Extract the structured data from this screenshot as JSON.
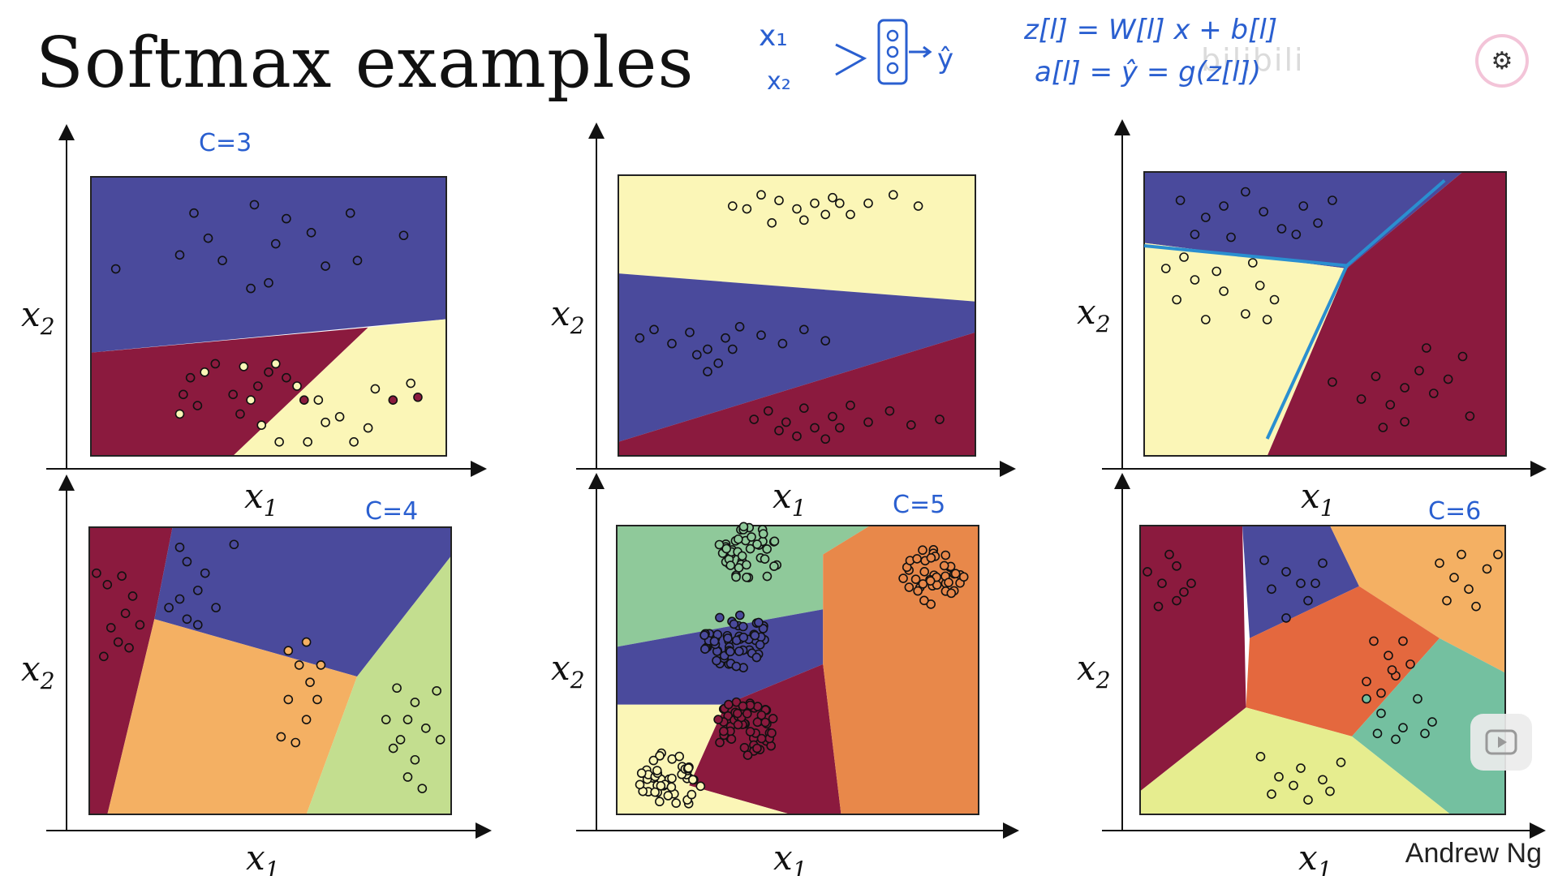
{
  "title": "Softmax examples",
  "author": "Andrew Ng",
  "watermark": "bilibili",
  "annotations": {
    "network_x1": "x₁",
    "network_x2": "x₂",
    "network_yhat": "ŷ",
    "eq1": "z[l] = W[l] x + b[l]",
    "eq2": "a[l] = ŷ = g(z[l])"
  },
  "colors": {
    "purple": "#4a4a9c",
    "maroon": "#8b1a3e",
    "lightyellow": "#fbf6b7",
    "orange": "#f4b063",
    "lightgreen": "#c3de8f",
    "green": "#8fc99a",
    "deeporange": "#e8884a",
    "red_orange": "#e4683e",
    "teal": "#74c0a0",
    "yellow_green": "#e6ed8f",
    "ink": "#2a5fd0"
  },
  "chart_data": [
    {
      "type": "scatter",
      "classes": 3,
      "class_annotation": "C=3",
      "xlabel": "x1",
      "ylabel": "x2",
      "region_colors": [
        "purple",
        "maroon",
        "lightyellow"
      ],
      "series": [
        {
          "class": "purple",
          "points": [
            [
              0.07,
              0.67
            ],
            [
              0.29,
              0.87
            ],
            [
              0.46,
              0.9
            ],
            [
              0.52,
              0.76
            ],
            [
              0.62,
              0.8
            ],
            [
              0.73,
              0.87
            ],
            [
              0.88,
              0.79
            ],
            [
              0.45,
              0.6
            ],
            [
              0.37,
              0.7
            ],
            [
              0.66,
              0.68
            ],
            [
              0.55,
              0.85
            ],
            [
              0.33,
              0.78
            ],
            [
              0.5,
              0.62
            ],
            [
              0.25,
              0.72
            ],
            [
              0.75,
              0.7
            ]
          ]
        },
        {
          "class": "maroon",
          "points": [
            [
              0.28,
              0.28
            ],
            [
              0.3,
              0.18
            ],
            [
              0.4,
              0.22
            ],
            [
              0.5,
              0.3
            ],
            [
              0.42,
              0.15
            ],
            [
              0.35,
              0.33
            ],
            [
              0.47,
              0.25
            ],
            [
              0.85,
              0.2
            ],
            [
              0.92,
              0.21
            ],
            [
              0.26,
              0.22
            ],
            [
              0.55,
              0.28
            ],
            [
              0.6,
              0.2
            ]
          ]
        },
        {
          "class": "lightyellow",
          "points": [
            [
              0.25,
              0.15
            ],
            [
              0.32,
              0.3
            ],
            [
              0.43,
              0.32
            ],
            [
              0.52,
              0.33
            ],
            [
              0.58,
              0.25
            ],
            [
              0.64,
              0.2
            ],
            [
              0.7,
              0.14
            ],
            [
              0.74,
              0.05
            ],
            [
              0.61,
              0.05
            ],
            [
              0.66,
              0.12
            ],
            [
              0.8,
              0.24
            ],
            [
              0.9,
              0.26
            ],
            [
              0.48,
              0.11
            ],
            [
              0.53,
              0.05
            ],
            [
              0.78,
              0.1
            ],
            [
              0.45,
              0.2
            ]
          ]
        }
      ]
    },
    {
      "type": "scatter",
      "classes": 3,
      "xlabel": "x1",
      "ylabel": "x2",
      "region_colors": [
        "lightyellow",
        "purple",
        "maroon"
      ],
      "series": [
        {
          "class": "lightyellow",
          "points": [
            [
              0.32,
              0.89
            ],
            [
              0.36,
              0.88
            ],
            [
              0.4,
              0.93
            ],
            [
              0.45,
              0.91
            ],
            [
              0.5,
              0.88
            ],
            [
              0.55,
              0.9
            ],
            [
              0.6,
              0.92
            ],
            [
              0.65,
              0.86
            ],
            [
              0.7,
              0.9
            ],
            [
              0.77,
              0.93
            ],
            [
              0.84,
              0.89
            ],
            [
              0.43,
              0.83
            ],
            [
              0.52,
              0.84
            ],
            [
              0.58,
              0.86
            ],
            [
              0.62,
              0.9
            ]
          ]
        },
        {
          "class": "purple",
          "points": [
            [
              0.06,
              0.42
            ],
            [
              0.1,
              0.45
            ],
            [
              0.15,
              0.4
            ],
            [
              0.2,
              0.44
            ],
            [
              0.25,
              0.38
            ],
            [
              0.3,
              0.42
            ],
            [
              0.34,
              0.46
            ],
            [
              0.4,
              0.43
            ],
            [
              0.46,
              0.4
            ],
            [
              0.52,
              0.45
            ],
            [
              0.58,
              0.41
            ],
            [
              0.25,
              0.3
            ],
            [
              0.28,
              0.33
            ],
            [
              0.22,
              0.36
            ],
            [
              0.32,
              0.38
            ]
          ]
        },
        {
          "class": "maroon",
          "points": [
            [
              0.38,
              0.13
            ],
            [
              0.42,
              0.16
            ],
            [
              0.47,
              0.12
            ],
            [
              0.52,
              0.17
            ],
            [
              0.55,
              0.1
            ],
            [
              0.6,
              0.14
            ],
            [
              0.65,
              0.18
            ],
            [
              0.7,
              0.12
            ],
            [
              0.76,
              0.16
            ],
            [
              0.82,
              0.11
            ],
            [
              0.9,
              0.13
            ],
            [
              0.58,
              0.06
            ],
            [
              0.5,
              0.07
            ],
            [
              0.62,
              0.1
            ],
            [
              0.45,
              0.09
            ]
          ]
        }
      ]
    },
    {
      "type": "scatter",
      "classes": 3,
      "xlabel": "x1",
      "ylabel": "x2",
      "region_colors": [
        "purple",
        "maroon",
        "lightyellow"
      ],
      "series": [
        {
          "class": "purple",
          "points": [
            [
              0.1,
              0.9
            ],
            [
              0.17,
              0.84
            ],
            [
              0.22,
              0.88
            ],
            [
              0.28,
              0.93
            ],
            [
              0.33,
              0.86
            ],
            [
              0.38,
              0.8
            ],
            [
              0.44,
              0.88
            ],
            [
              0.48,
              0.82
            ],
            [
              0.52,
              0.9
            ],
            [
              0.14,
              0.78
            ],
            [
              0.24,
              0.77
            ],
            [
              0.42,
              0.78
            ]
          ]
        },
        {
          "class": "lightyellow",
          "points": [
            [
              0.06,
              0.66
            ],
            [
              0.09,
              0.55
            ],
            [
              0.14,
              0.62
            ],
            [
              0.17,
              0.48
            ],
            [
              0.22,
              0.58
            ],
            [
              0.28,
              0.5
            ],
            [
              0.32,
              0.6
            ],
            [
              0.36,
              0.55
            ],
            [
              0.2,
              0.65
            ],
            [
              0.3,
              0.68
            ],
            [
              0.11,
              0.7
            ],
            [
              0.34,
              0.48
            ]
          ]
        },
        {
          "class": "maroon",
          "points": [
            [
              0.52,
              0.26
            ],
            [
              0.6,
              0.2
            ],
            [
              0.64,
              0.28
            ],
            [
              0.68,
              0.18
            ],
            [
              0.72,
              0.24
            ],
            [
              0.76,
              0.3
            ],
            [
              0.8,
              0.22
            ],
            [
              0.84,
              0.27
            ],
            [
              0.9,
              0.14
            ],
            [
              0.66,
              0.1
            ],
            [
              0.72,
              0.12
            ],
            [
              0.78,
              0.38
            ],
            [
              0.88,
              0.35
            ]
          ]
        }
      ]
    },
    {
      "type": "scatter",
      "classes": 4,
      "class_annotation": "C=4",
      "xlabel": "x1",
      "ylabel": "x2",
      "region_colors": [
        "maroon",
        "purple",
        "orange",
        "lightgreen"
      ],
      "series": [
        {
          "class": "maroon",
          "points": [
            [
              0.02,
              0.84
            ],
            [
              0.05,
              0.8
            ],
            [
              0.09,
              0.83
            ],
            [
              0.12,
              0.76
            ],
            [
              0.06,
              0.65
            ],
            [
              0.1,
              0.7
            ],
            [
              0.14,
              0.66
            ],
            [
              0.08,
              0.6
            ],
            [
              0.04,
              0.55
            ],
            [
              0.11,
              0.58
            ]
          ]
        },
        {
          "class": "purple",
          "points": [
            [
              0.25,
              0.93
            ],
            [
              0.27,
              0.88
            ],
            [
              0.32,
              0.84
            ],
            [
              0.3,
              0.78
            ],
            [
              0.25,
              0.75
            ],
            [
              0.22,
              0.72
            ],
            [
              0.27,
              0.68
            ],
            [
              0.35,
              0.72
            ],
            [
              0.3,
              0.66
            ],
            [
              0.4,
              0.94
            ]
          ]
        },
        {
          "class": "orange",
          "points": [
            [
              0.55,
              0.57
            ],
            [
              0.6,
              0.6
            ],
            [
              0.58,
              0.52
            ],
            [
              0.61,
              0.46
            ],
            [
              0.55,
              0.4
            ],
            [
              0.6,
              0.33
            ],
            [
              0.53,
              0.27
            ],
            [
              0.57,
              0.25
            ],
            [
              0.63,
              0.4
            ],
            [
              0.64,
              0.52
            ]
          ]
        },
        {
          "class": "lightgreen",
          "points": [
            [
              0.85,
              0.44
            ],
            [
              0.9,
              0.39
            ],
            [
              0.88,
              0.33
            ],
            [
              0.86,
              0.26
            ],
            [
              0.9,
              0.19
            ],
            [
              0.93,
              0.3
            ],
            [
              0.96,
              0.43
            ],
            [
              0.82,
              0.33
            ],
            [
              0.84,
              0.23
            ],
            [
              0.97,
              0.26
            ],
            [
              0.88,
              0.13
            ],
            [
              0.92,
              0.09
            ]
          ]
        }
      ]
    },
    {
      "type": "scatter",
      "classes": 5,
      "class_annotation": "C=5",
      "xlabel": "x1",
      "ylabel": "x2",
      "region_colors": [
        "green",
        "purple",
        "maroon",
        "lightyellow",
        "deeporange"
      ],
      "clusters": [
        {
          "class": "green",
          "center": [
            0.36,
            0.9
          ],
          "count": 45
        },
        {
          "class": "purple",
          "center": [
            0.33,
            0.6
          ],
          "count": 55
        },
        {
          "class": "maroon",
          "center": [
            0.36,
            0.3
          ],
          "count": 55
        },
        {
          "class": "lightyellow",
          "center": [
            0.15,
            0.12
          ],
          "count": 50
        },
        {
          "class": "deeporange",
          "center": [
            0.87,
            0.82
          ],
          "count": 40
        }
      ]
    },
    {
      "type": "scatter",
      "classes": 6,
      "class_annotation": "C=6",
      "xlabel": "x1",
      "ylabel": "x2",
      "region_colors": [
        "maroon",
        "purple",
        "orange",
        "red_orange",
        "teal",
        "yellow_green"
      ],
      "series": [
        {
          "class": "maroon",
          "points": [
            [
              0.02,
              0.84
            ],
            [
              0.06,
              0.8
            ],
            [
              0.1,
              0.86
            ],
            [
              0.14,
              0.8
            ],
            [
              0.1,
              0.74
            ],
            [
              0.05,
              0.72
            ],
            [
              0.12,
              0.77
            ],
            [
              0.08,
              0.9
            ]
          ]
        },
        {
          "class": "purple",
          "points": [
            [
              0.34,
              0.88
            ],
            [
              0.4,
              0.84
            ],
            [
              0.44,
              0.8
            ],
            [
              0.5,
              0.87
            ],
            [
              0.46,
              0.74
            ],
            [
              0.4,
              0.68
            ],
            [
              0.36,
              0.78
            ],
            [
              0.48,
              0.8
            ]
          ]
        },
        {
          "class": "orange",
          "points": [
            [
              0.82,
              0.87
            ],
            [
              0.86,
              0.82
            ],
            [
              0.9,
              0.78
            ],
            [
              0.95,
              0.85
            ],
            [
              0.88,
              0.9
            ],
            [
              0.92,
              0.72
            ],
            [
              0.84,
              0.74
            ],
            [
              0.98,
              0.9
            ]
          ]
        },
        {
          "class": "red_orange",
          "points": [
            [
              0.64,
              0.6
            ],
            [
              0.68,
              0.55
            ],
            [
              0.7,
              0.48
            ],
            [
              0.66,
              0.42
            ],
            [
              0.72,
              0.6
            ],
            [
              0.69,
              0.5
            ],
            [
              0.62,
              0.46
            ],
            [
              0.74,
              0.52
            ]
          ]
        },
        {
          "class": "teal",
          "points": [
            [
              0.62,
              0.4
            ],
            [
              0.66,
              0.35
            ],
            [
              0.72,
              0.3
            ],
            [
              0.76,
              0.4
            ],
            [
              0.8,
              0.32
            ],
            [
              0.7,
              0.26
            ],
            [
              0.78,
              0.28
            ],
            [
              0.65,
              0.28
            ]
          ]
        },
        {
          "class": "yellow_green",
          "points": [
            [
              0.33,
              0.2
            ],
            [
              0.38,
              0.13
            ],
            [
              0.42,
              0.1
            ],
            [
              0.46,
              0.05
            ],
            [
              0.5,
              0.12
            ],
            [
              0.55,
              0.18
            ],
            [
              0.52,
              0.08
            ],
            [
              0.36,
              0.07
            ],
            [
              0.44,
              0.16
            ]
          ]
        }
      ]
    }
  ]
}
